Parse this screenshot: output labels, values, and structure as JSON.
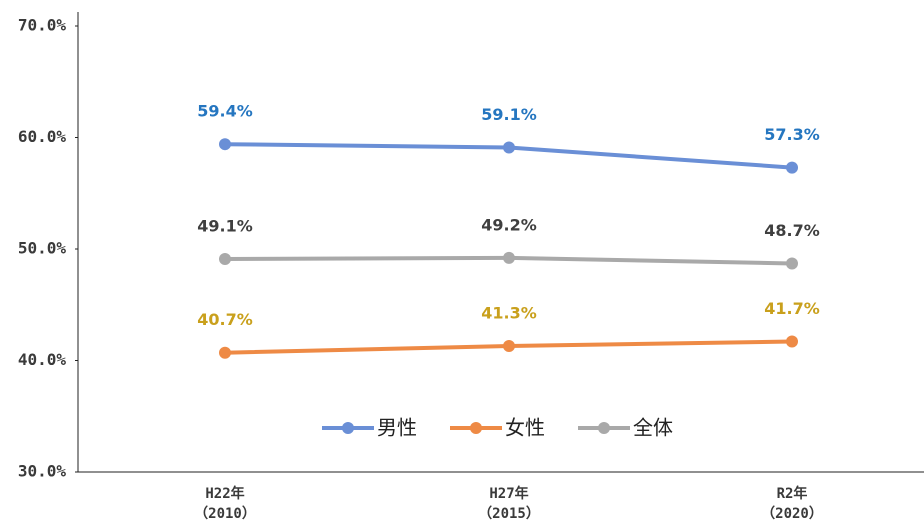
{
  "chart_data": {
    "type": "line",
    "categories": [
      "H22年\n（2010）",
      "H27年\n（2015）",
      "R2年\n（2020）"
    ],
    "series": [
      {
        "name": "男性",
        "color": "#6a8fd6",
        "label_color": "#2576c0",
        "values": [
          59.4,
          59.1,
          57.3
        ],
        "value_labels": [
          "59.4%",
          "59.1%",
          "57.3%"
        ]
      },
      {
        "name": "女性",
        "color": "#ee8a45",
        "label_color": "#c9a01c",
        "values": [
          40.7,
          41.3,
          41.7
        ],
        "value_labels": [
          "40.7%",
          "41.3%",
          "41.7%"
        ]
      },
      {
        "name": "全体",
        "color": "#a9a9a9",
        "label_color": "#3f3f3f",
        "values": [
          49.1,
          49.2,
          48.7
        ],
        "value_labels": [
          "49.1%",
          "49.2%",
          "48.7%"
        ]
      }
    ],
    "ylim": [
      30,
      70
    ],
    "yticks": [
      {
        "value": 30,
        "label": "30.0%"
      },
      {
        "value": 40,
        "label": "40.0%"
      },
      {
        "value": 50,
        "label": "50.0%"
      },
      {
        "value": 60,
        "label": "60.0%"
      },
      {
        "value": 70,
        "label": "70.0%"
      }
    ],
    "grid": false,
    "legend": "bottom"
  }
}
